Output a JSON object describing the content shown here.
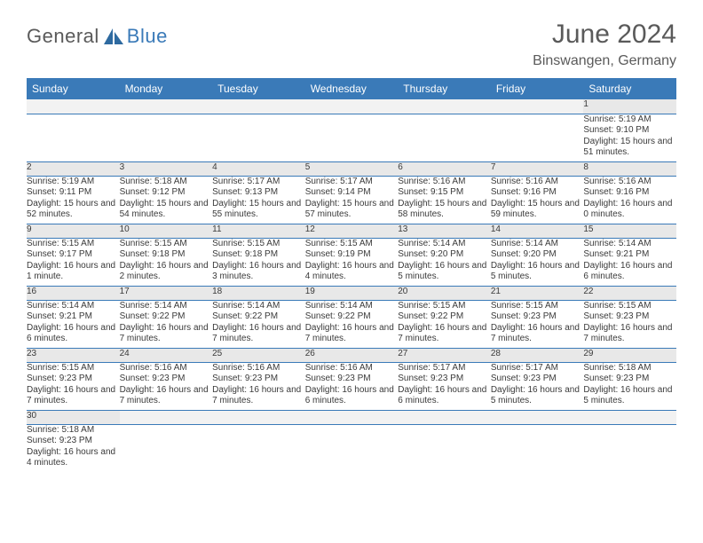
{
  "brand": {
    "word1": "General",
    "word2": "Blue"
  },
  "title": "June 2024",
  "location": "Binswangen, Germany",
  "colors": {
    "header_bg": "#3a7ab8",
    "header_fg": "#ffffff",
    "daynum_bg": "#e8e8e8",
    "rule": "#3a7ab8",
    "text": "#3a3a3a"
  },
  "weekdays": [
    "Sunday",
    "Monday",
    "Tuesday",
    "Wednesday",
    "Thursday",
    "Friday",
    "Saturday"
  ],
  "weeks": [
    [
      null,
      null,
      null,
      null,
      null,
      null,
      {
        "n": "1",
        "sr": "Sunrise: 5:19 AM",
        "ss": "Sunset: 9:10 PM",
        "dl": "Daylight: 15 hours and 51 minutes."
      }
    ],
    [
      {
        "n": "2",
        "sr": "Sunrise: 5:19 AM",
        "ss": "Sunset: 9:11 PM",
        "dl": "Daylight: 15 hours and 52 minutes."
      },
      {
        "n": "3",
        "sr": "Sunrise: 5:18 AM",
        "ss": "Sunset: 9:12 PM",
        "dl": "Daylight: 15 hours and 54 minutes."
      },
      {
        "n": "4",
        "sr": "Sunrise: 5:17 AM",
        "ss": "Sunset: 9:13 PM",
        "dl": "Daylight: 15 hours and 55 minutes."
      },
      {
        "n": "5",
        "sr": "Sunrise: 5:17 AM",
        "ss": "Sunset: 9:14 PM",
        "dl": "Daylight: 15 hours and 57 minutes."
      },
      {
        "n": "6",
        "sr": "Sunrise: 5:16 AM",
        "ss": "Sunset: 9:15 PM",
        "dl": "Daylight: 15 hours and 58 minutes."
      },
      {
        "n": "7",
        "sr": "Sunrise: 5:16 AM",
        "ss": "Sunset: 9:16 PM",
        "dl": "Daylight: 15 hours and 59 minutes."
      },
      {
        "n": "8",
        "sr": "Sunrise: 5:16 AM",
        "ss": "Sunset: 9:16 PM",
        "dl": "Daylight: 16 hours and 0 minutes."
      }
    ],
    [
      {
        "n": "9",
        "sr": "Sunrise: 5:15 AM",
        "ss": "Sunset: 9:17 PM",
        "dl": "Daylight: 16 hours and 1 minute."
      },
      {
        "n": "10",
        "sr": "Sunrise: 5:15 AM",
        "ss": "Sunset: 9:18 PM",
        "dl": "Daylight: 16 hours and 2 minutes."
      },
      {
        "n": "11",
        "sr": "Sunrise: 5:15 AM",
        "ss": "Sunset: 9:18 PM",
        "dl": "Daylight: 16 hours and 3 minutes."
      },
      {
        "n": "12",
        "sr": "Sunrise: 5:15 AM",
        "ss": "Sunset: 9:19 PM",
        "dl": "Daylight: 16 hours and 4 minutes."
      },
      {
        "n": "13",
        "sr": "Sunrise: 5:14 AM",
        "ss": "Sunset: 9:20 PM",
        "dl": "Daylight: 16 hours and 5 minutes."
      },
      {
        "n": "14",
        "sr": "Sunrise: 5:14 AM",
        "ss": "Sunset: 9:20 PM",
        "dl": "Daylight: 16 hours and 5 minutes."
      },
      {
        "n": "15",
        "sr": "Sunrise: 5:14 AM",
        "ss": "Sunset: 9:21 PM",
        "dl": "Daylight: 16 hours and 6 minutes."
      }
    ],
    [
      {
        "n": "16",
        "sr": "Sunrise: 5:14 AM",
        "ss": "Sunset: 9:21 PM",
        "dl": "Daylight: 16 hours and 6 minutes."
      },
      {
        "n": "17",
        "sr": "Sunrise: 5:14 AM",
        "ss": "Sunset: 9:22 PM",
        "dl": "Daylight: 16 hours and 7 minutes."
      },
      {
        "n": "18",
        "sr": "Sunrise: 5:14 AM",
        "ss": "Sunset: 9:22 PM",
        "dl": "Daylight: 16 hours and 7 minutes."
      },
      {
        "n": "19",
        "sr": "Sunrise: 5:14 AM",
        "ss": "Sunset: 9:22 PM",
        "dl": "Daylight: 16 hours and 7 minutes."
      },
      {
        "n": "20",
        "sr": "Sunrise: 5:15 AM",
        "ss": "Sunset: 9:22 PM",
        "dl": "Daylight: 16 hours and 7 minutes."
      },
      {
        "n": "21",
        "sr": "Sunrise: 5:15 AM",
        "ss": "Sunset: 9:23 PM",
        "dl": "Daylight: 16 hours and 7 minutes."
      },
      {
        "n": "22",
        "sr": "Sunrise: 5:15 AM",
        "ss": "Sunset: 9:23 PM",
        "dl": "Daylight: 16 hours and 7 minutes."
      }
    ],
    [
      {
        "n": "23",
        "sr": "Sunrise: 5:15 AM",
        "ss": "Sunset: 9:23 PM",
        "dl": "Daylight: 16 hours and 7 minutes."
      },
      {
        "n": "24",
        "sr": "Sunrise: 5:16 AM",
        "ss": "Sunset: 9:23 PM",
        "dl": "Daylight: 16 hours and 7 minutes."
      },
      {
        "n": "25",
        "sr": "Sunrise: 5:16 AM",
        "ss": "Sunset: 9:23 PM",
        "dl": "Daylight: 16 hours and 7 minutes."
      },
      {
        "n": "26",
        "sr": "Sunrise: 5:16 AM",
        "ss": "Sunset: 9:23 PM",
        "dl": "Daylight: 16 hours and 6 minutes."
      },
      {
        "n": "27",
        "sr": "Sunrise: 5:17 AM",
        "ss": "Sunset: 9:23 PM",
        "dl": "Daylight: 16 hours and 6 minutes."
      },
      {
        "n": "28",
        "sr": "Sunrise: 5:17 AM",
        "ss": "Sunset: 9:23 PM",
        "dl": "Daylight: 16 hours and 5 minutes."
      },
      {
        "n": "29",
        "sr": "Sunrise: 5:18 AM",
        "ss": "Sunset: 9:23 PM",
        "dl": "Daylight: 16 hours and 5 minutes."
      }
    ],
    [
      {
        "n": "30",
        "sr": "Sunrise: 5:18 AM",
        "ss": "Sunset: 9:23 PM",
        "dl": "Daylight: 16 hours and 4 minutes."
      },
      null,
      null,
      null,
      null,
      null,
      null
    ]
  ]
}
